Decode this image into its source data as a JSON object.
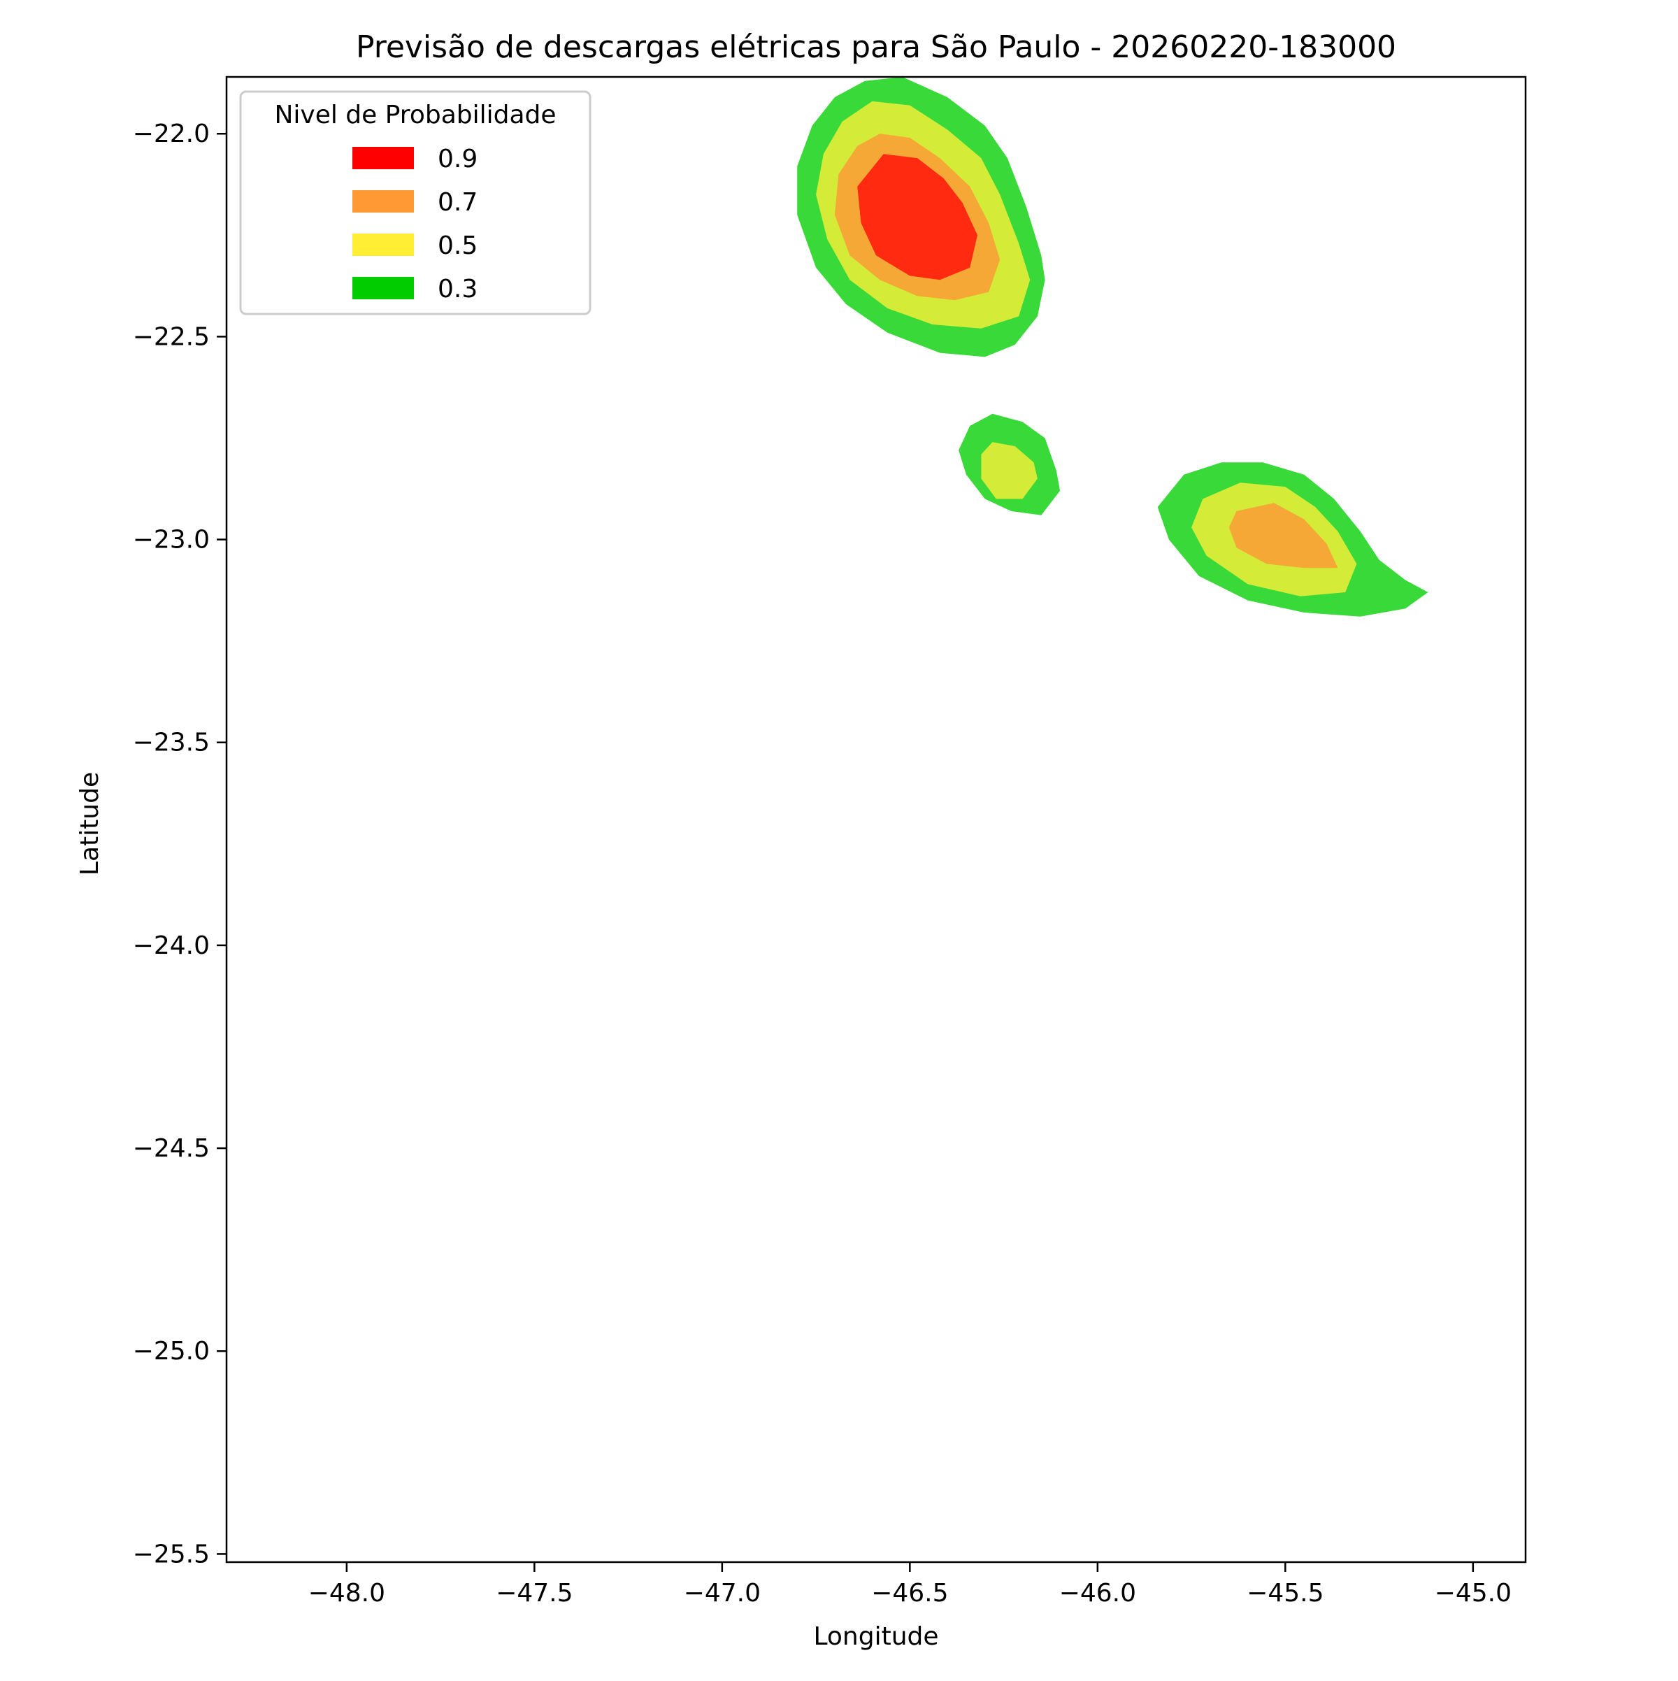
{
  "chart_data": {
    "type": "contourf",
    "title": "Previsão de descargas elétricas para São Paulo - 20260220-183000",
    "xlabel": "Longitude",
    "ylabel": "Latitude",
    "xlim": [
      -48.32,
      -44.86
    ],
    "ylim": [
      -25.52,
      -21.86
    ],
    "xticks": [
      -48.0,
      -47.5,
      -47.0,
      -46.5,
      -46.0,
      -45.5,
      -45.0
    ],
    "xtick_labels": [
      "−48.0",
      "−47.5",
      "−47.0",
      "−46.5",
      "−46.0",
      "−45.5",
      "−45.0"
    ],
    "yticks": [
      -22.0,
      -22.5,
      -23.0,
      -23.5,
      -24.0,
      -24.5,
      -25.0,
      -25.5
    ],
    "ytick_labels": [
      "−22.0",
      "−22.5",
      "−23.0",
      "−23.5",
      "−24.0",
      "−24.5",
      "−25.0",
      "−25.5"
    ],
    "grid": false,
    "legend": {
      "title": "Nivel de Probabilidade",
      "placement": "upper-left",
      "entries": [
        {
          "label": "0.9",
          "color": "#ff0000"
        },
        {
          "label": "0.7",
          "color": "#ff9933"
        },
        {
          "label": "0.5",
          "color": "#ffee33"
        },
        {
          "label": "0.3",
          "color": "#00cc00"
        }
      ]
    },
    "level_fill_colors": {
      "0.3": "#38d938",
      "0.5": "#d4ec38",
      "0.7": "#f5a836",
      "0.9": "#ff2a10"
    },
    "regions": [
      {
        "name": "cell-north",
        "layers": [
          {
            "level": 0.3,
            "polygon": [
              [
                -46.62,
                -21.87
              ],
              [
                -46.52,
                -21.86
              ],
              [
                -46.4,
                -21.91
              ],
              [
                -46.3,
                -21.98
              ],
              [
                -46.24,
                -22.06
              ],
              [
                -46.19,
                -22.18
              ],
              [
                -46.15,
                -22.3
              ],
              [
                -46.14,
                -22.36
              ],
              [
                -46.16,
                -22.45
              ],
              [
                -46.22,
                -22.52
              ],
              [
                -46.3,
                -22.55
              ],
              [
                -46.42,
                -22.54
              ],
              [
                -46.56,
                -22.49
              ],
              [
                -46.67,
                -22.42
              ],
              [
                -46.75,
                -22.33
              ],
              [
                -46.8,
                -22.2
              ],
              [
                -46.8,
                -22.08
              ],
              [
                -46.76,
                -21.98
              ],
              [
                -46.7,
                -21.91
              ]
            ]
          },
          {
            "level": 0.5,
            "polygon": [
              [
                -46.6,
                -21.92
              ],
              [
                -46.5,
                -21.93
              ],
              [
                -46.4,
                -21.99
              ],
              [
                -46.31,
                -22.06
              ],
              [
                -46.26,
                -22.15
              ],
              [
                -46.21,
                -22.27
              ],
              [
                -46.18,
                -22.36
              ],
              [
                -46.21,
                -22.45
              ],
              [
                -46.31,
                -22.48
              ],
              [
                -46.44,
                -22.47
              ],
              [
                -46.56,
                -22.43
              ],
              [
                -46.66,
                -22.36
              ],
              [
                -46.72,
                -22.26
              ],
              [
                -46.75,
                -22.15
              ],
              [
                -46.73,
                -22.05
              ],
              [
                -46.68,
                -21.97
              ]
            ]
          },
          {
            "level": 0.7,
            "polygon": [
              [
                -46.58,
                -22.0
              ],
              [
                -46.5,
                -22.01
              ],
              [
                -46.42,
                -22.06
              ],
              [
                -46.34,
                -22.13
              ],
              [
                -46.29,
                -22.22
              ],
              [
                -46.26,
                -22.31
              ],
              [
                -46.29,
                -22.39
              ],
              [
                -46.38,
                -22.41
              ],
              [
                -46.48,
                -22.4
              ],
              [
                -46.58,
                -22.36
              ],
              [
                -46.66,
                -22.3
              ],
              [
                -46.7,
                -22.2
              ],
              [
                -46.69,
                -22.1
              ],
              [
                -46.64,
                -22.03
              ]
            ]
          },
          {
            "level": 0.9,
            "polygon": [
              [
                -46.57,
                -22.05
              ],
              [
                -46.48,
                -22.06
              ],
              [
                -46.41,
                -22.11
              ],
              [
                -46.36,
                -22.17
              ],
              [
                -46.32,
                -22.25
              ],
              [
                -46.34,
                -22.33
              ],
              [
                -46.42,
                -22.36
              ],
              [
                -46.5,
                -22.35
              ],
              [
                -46.59,
                -22.3
              ],
              [
                -46.63,
                -22.22
              ],
              [
                -46.64,
                -22.13
              ]
            ]
          }
        ]
      },
      {
        "name": "cell-middle",
        "layers": [
          {
            "level": 0.3,
            "polygon": [
              [
                -46.28,
                -22.69
              ],
              [
                -46.2,
                -22.71
              ],
              [
                -46.14,
                -22.75
              ],
              [
                -46.11,
                -22.83
              ],
              [
                -46.1,
                -22.88
              ],
              [
                -46.15,
                -22.94
              ],
              [
                -46.23,
                -22.93
              ],
              [
                -46.3,
                -22.9
              ],
              [
                -46.35,
                -22.84
              ],
              [
                -46.37,
                -22.78
              ],
              [
                -46.34,
                -22.72
              ]
            ]
          },
          {
            "level": 0.5,
            "polygon": [
              [
                -46.28,
                -22.76
              ],
              [
                -46.22,
                -22.77
              ],
              [
                -46.17,
                -22.81
              ],
              [
                -46.16,
                -22.85
              ],
              [
                -46.2,
                -22.9
              ],
              [
                -46.27,
                -22.9
              ],
              [
                -46.31,
                -22.85
              ],
              [
                -46.31,
                -22.79
              ]
            ]
          }
        ]
      },
      {
        "name": "cell-east",
        "layers": [
          {
            "level": 0.3,
            "polygon": [
              [
                -45.77,
                -22.84
              ],
              [
                -45.67,
                -22.81
              ],
              [
                -45.56,
                -22.81
              ],
              [
                -45.45,
                -22.84
              ],
              [
                -45.37,
                -22.9
              ],
              [
                -45.3,
                -22.98
              ],
              [
                -45.25,
                -23.05
              ],
              [
                -45.18,
                -23.1
              ],
              [
                -45.12,
                -23.13
              ],
              [
                -45.18,
                -23.17
              ],
              [
                -45.3,
                -23.19
              ],
              [
                -45.45,
                -23.18
              ],
              [
                -45.6,
                -23.15
              ],
              [
                -45.73,
                -23.09
              ],
              [
                -45.81,
                -23.0
              ],
              [
                -45.84,
                -22.92
              ]
            ]
          },
          {
            "level": 0.5,
            "polygon": [
              [
                -45.72,
                -22.9
              ],
              [
                -45.62,
                -22.86
              ],
              [
                -45.5,
                -22.87
              ],
              [
                -45.42,
                -22.92
              ],
              [
                -45.36,
                -22.98
              ],
              [
                -45.31,
                -23.06
              ],
              [
                -45.34,
                -23.13
              ],
              [
                -45.46,
                -23.14
              ],
              [
                -45.6,
                -23.11
              ],
              [
                -45.71,
                -23.04
              ],
              [
                -45.75,
                -22.97
              ]
            ]
          },
          {
            "level": 0.7,
            "polygon": [
              [
                -45.63,
                -22.93
              ],
              [
                -45.53,
                -22.91
              ],
              [
                -45.45,
                -22.95
              ],
              [
                -45.39,
                -23.01
              ],
              [
                -45.36,
                -23.07
              ],
              [
                -45.45,
                -23.07
              ],
              [
                -45.55,
                -23.06
              ],
              [
                -45.63,
                -23.02
              ],
              [
                -45.65,
                -22.97
              ]
            ]
          }
        ]
      }
    ]
  }
}
